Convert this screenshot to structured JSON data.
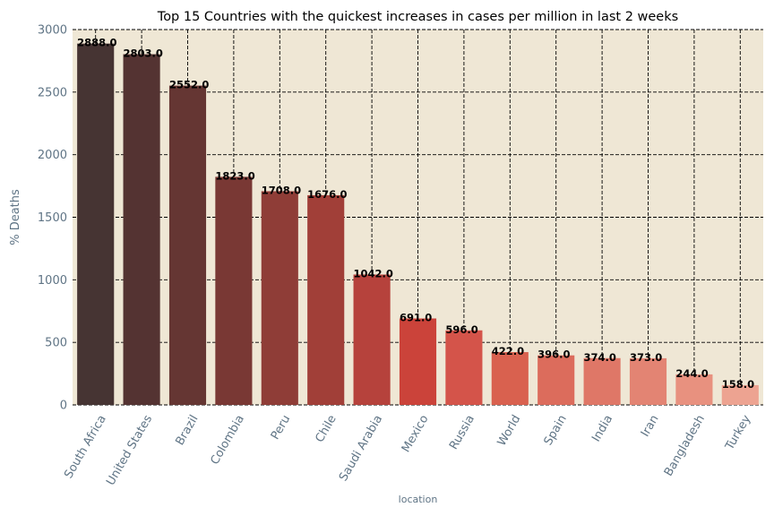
{
  "chart_data": {
    "type": "bar",
    "title": "Top 15 Countries with the quickest increases in cases per million in last 2 weeks",
    "xlabel": "location",
    "ylabel": "% Deaths",
    "categories": [
      "South Africa",
      "United States",
      "Brazil",
      "Colombia",
      "Peru",
      "Chile",
      "Saudi Arabia",
      "Mexico",
      "Russia",
      "World",
      "Spain",
      "India",
      "Iran",
      "Bangladesh",
      "Turkey"
    ],
    "values": [
      2888.0,
      2803.0,
      2552.0,
      1823.0,
      1708.0,
      1676.0,
      1042.0,
      691.0,
      596.0,
      422.0,
      396.0,
      374.0,
      373.0,
      244.0,
      158.0
    ],
    "value_labels": [
      "2888.0",
      "2803.0",
      "2552.0",
      "1823.0",
      "1708.0",
      "1676.0",
      "1042.0",
      "691.0",
      "596.0",
      "422.0",
      "396.0",
      "374.0",
      "373.0",
      "244.0",
      "158.0"
    ],
    "ylim": [
      0,
      3000
    ],
    "yticks": [
      0,
      500,
      1000,
      1500,
      2000,
      2500,
      3000
    ],
    "grid": true,
    "legend": "none",
    "colors": {
      "plot_background": "#efe7d5",
      "bar_palette": [
        "#463433",
        "#543332",
        "#653633",
        "#793834",
        "#8f3d37",
        "#a13f38",
        "#b6423c",
        "#cb433a",
        "#d4544a",
        "#d9614f",
        "#dc6c5c",
        "#df7767",
        "#e38473",
        "#e8917f",
        "#eda391"
      ],
      "tick_text": "#5f7485"
    }
  }
}
